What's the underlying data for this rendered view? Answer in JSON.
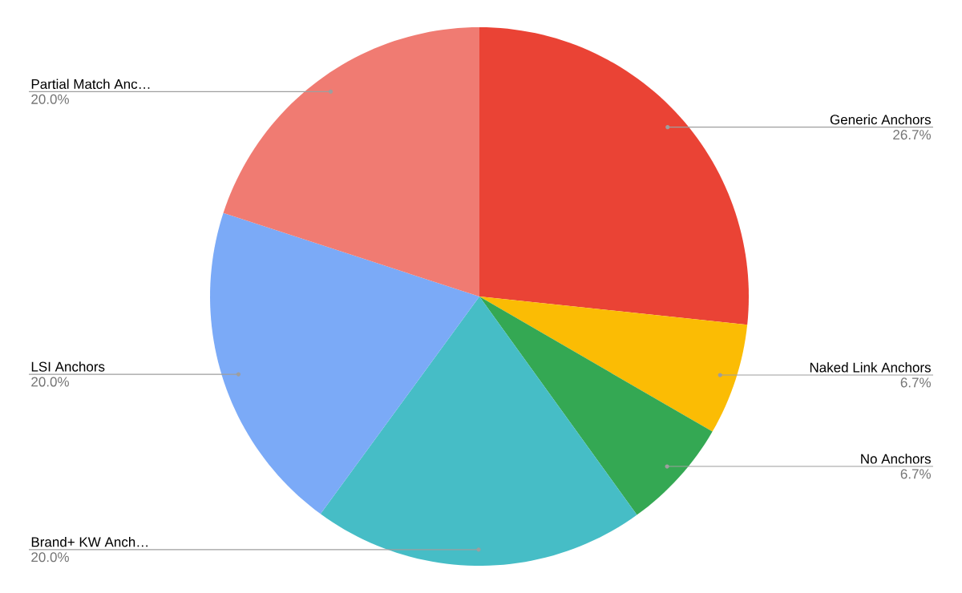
{
  "chart_data": {
    "type": "pie",
    "categories": [
      "Generic Anchors",
      "Naked Link Anchors",
      "No Anchors",
      "Brand+ KW Anch…",
      "LSI Anchors",
      "Partial Match Anc…"
    ],
    "values": [
      26.7,
      6.7,
      6.7,
      20.0,
      20.0,
      20.0
    ],
    "value_labels": [
      "26.7%",
      "6.7%",
      "6.7%",
      "20.0%",
      "20.0%",
      "20.0%"
    ],
    "colors": [
      "#ea4335",
      "#fbbc04",
      "#34a853",
      "#46bdc6",
      "#7baaf7",
      "#f07b72"
    ]
  }
}
